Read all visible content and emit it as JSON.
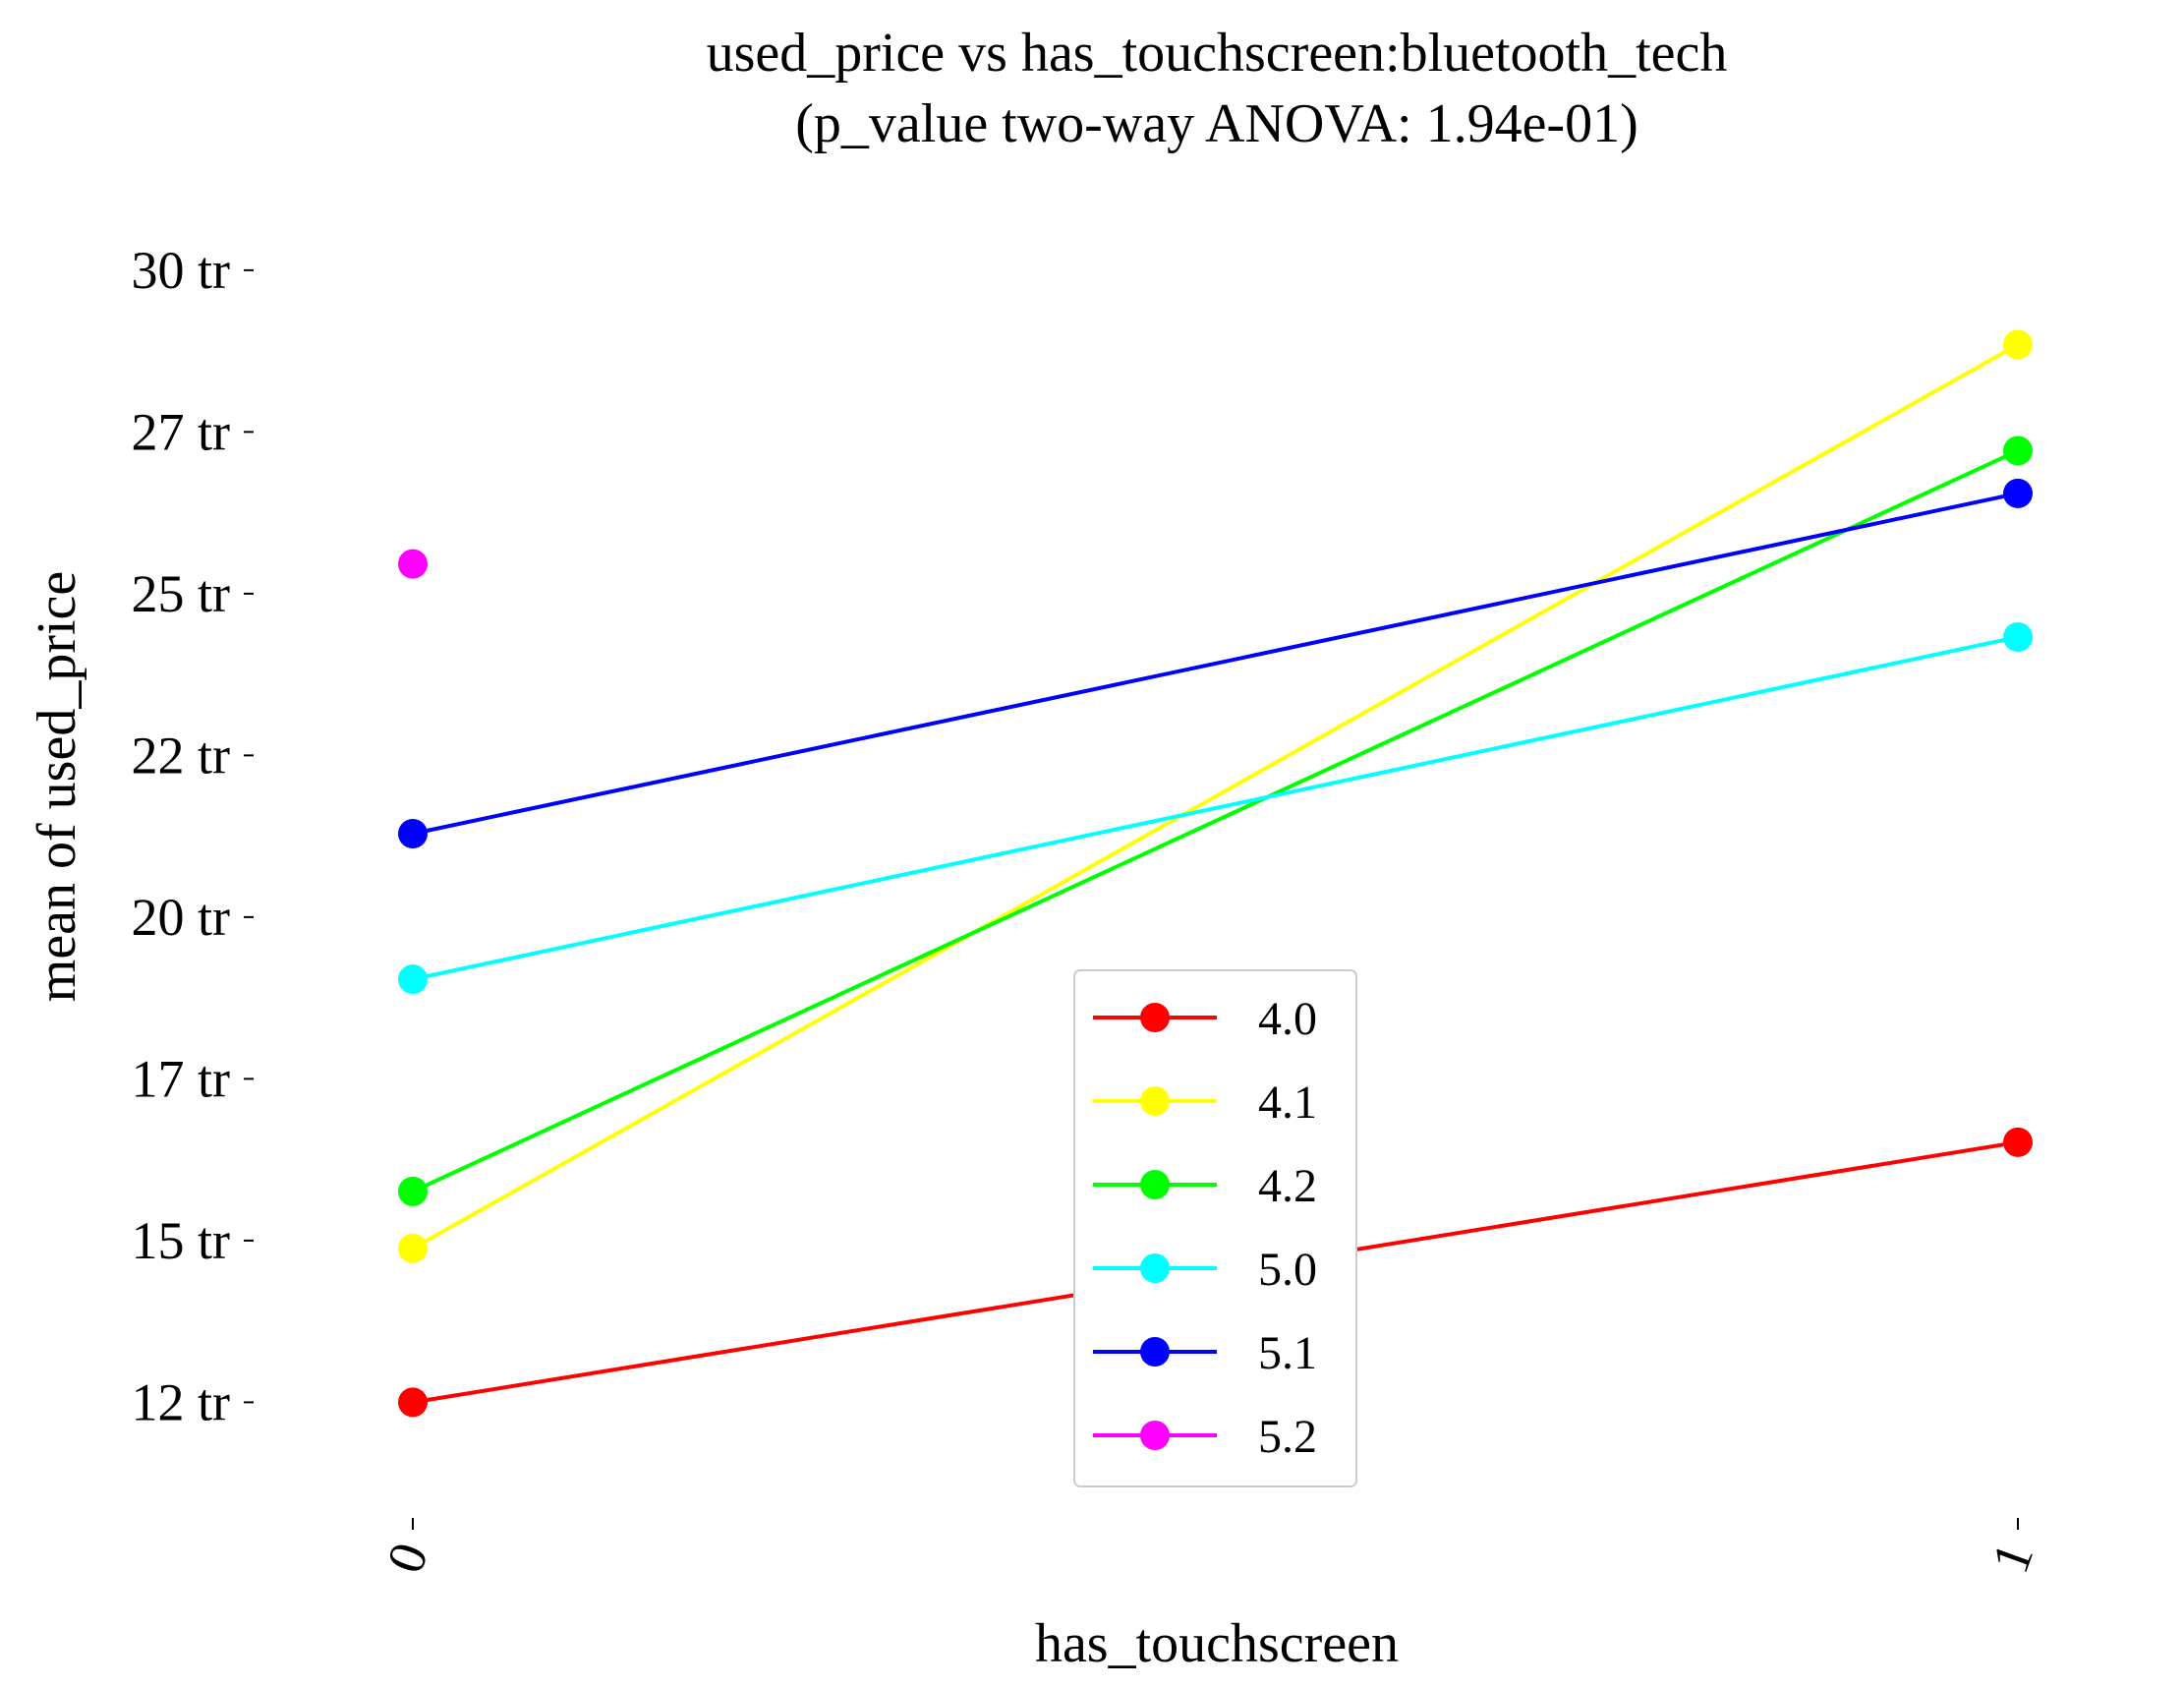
{
  "chart_data": {
    "type": "line",
    "title": "used_price vs has_touchscreen:bluetooth_tech",
    "subtitle": "(p_value two-way ANOVA: 1.94e-01)",
    "xlabel": "has_touchscreen",
    "ylabel": "mean of used_price",
    "categories": [
      "0",
      "1"
    ],
    "y_ticks": [
      12000000,
      14500000,
      17000000,
      19500000,
      22000000,
      24500000,
      27000000,
      29500000
    ],
    "y_tick_labels": [
      "12 tr",
      "15 tr",
      "17 tr",
      "20 tr",
      "22 tr",
      "25 tr",
      "27 tr",
      "30 tr"
    ],
    "ylim": [
      10000000,
      31200000
    ],
    "grid": false,
    "legend_position": "bottom-center",
    "series": [
      {
        "name": "4.0",
        "color": "#ff0000",
        "values": [
          12000000,
          16020000
        ]
      },
      {
        "name": "4.1",
        "color": "#ffff00",
        "values": [
          14380000,
          28350000
        ]
      },
      {
        "name": "4.2",
        "color": "#00ff00",
        "values": [
          15260000,
          26710000
        ]
      },
      {
        "name": "5.0",
        "color": "#00ffff",
        "values": [
          18540000,
          23830000
        ]
      },
      {
        "name": "5.1",
        "color": "#0000ff",
        "values": [
          20790000,
          26050000
        ]
      },
      {
        "name": "5.2",
        "color": "#ff00ff",
        "values": [
          24960000,
          null
        ]
      }
    ]
  }
}
